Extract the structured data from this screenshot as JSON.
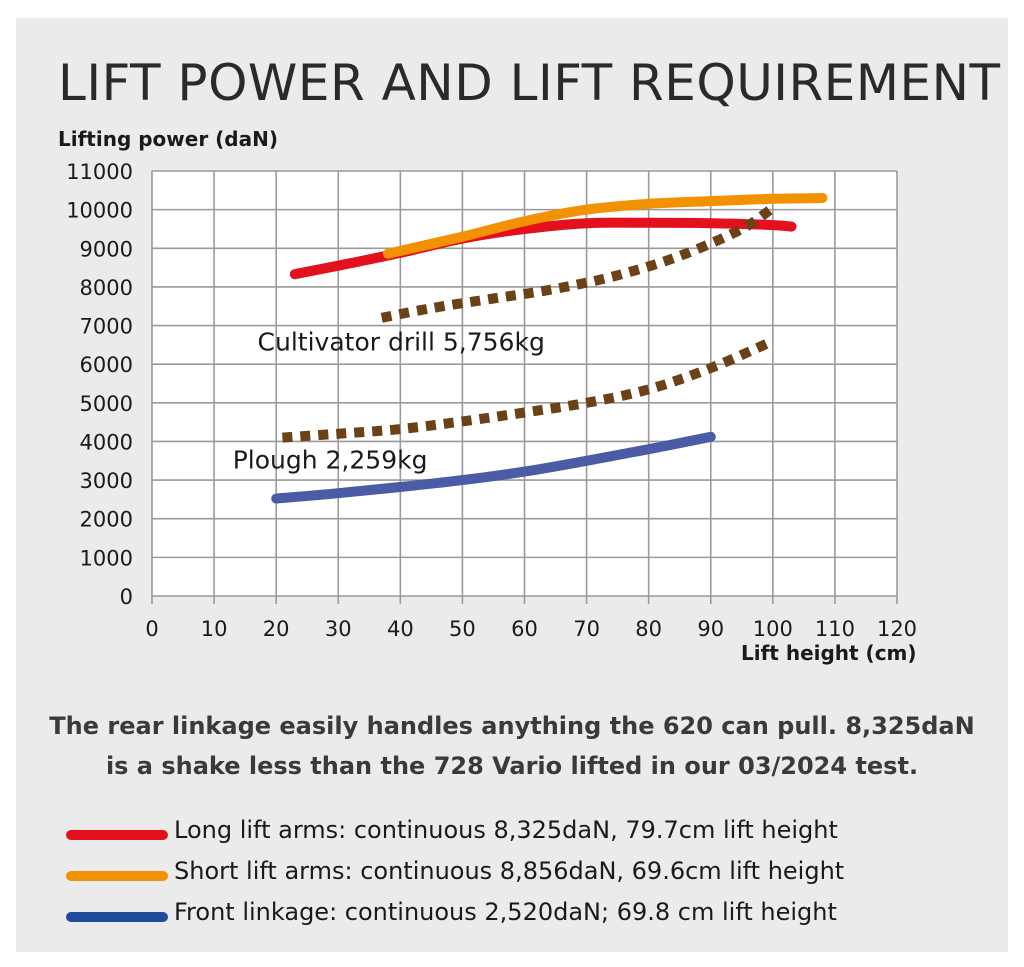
{
  "chart_data": {
    "type": "line",
    "title": "LIFT POWER AND LIFT REQUIREMENT",
    "ylabel": "Lifting power (daN)",
    "xlabel": "Lift height (cm)",
    "xlim": [
      0,
      120
    ],
    "ylim": [
      0,
      11000
    ],
    "x_ticks": [
      0,
      10,
      20,
      30,
      40,
      50,
      60,
      70,
      80,
      90,
      100,
      110,
      120
    ],
    "y_ticks": [
      0,
      1000,
      2000,
      3000,
      4000,
      5000,
      6000,
      7000,
      8000,
      9000,
      10000,
      11000
    ],
    "x_tick_labels": [
      "0",
      "10",
      "20",
      "30",
      "40",
      "50",
      "60",
      "70",
      "80",
      "90",
      "100",
      "110",
      "120"
    ],
    "y_tick_labels": [
      "0",
      "1000",
      "2000",
      "3000",
      "4000",
      "5000",
      "6000",
      "7000",
      "8000",
      "9000",
      "10000",
      "11000"
    ],
    "grid": true,
    "series": [
      {
        "color": "#e3101e",
        "style": "solid",
        "x": [
          23,
          30,
          40,
          50,
          60,
          70,
          80,
          90,
          100,
          103
        ],
        "y": [
          8330,
          8550,
          8880,
          9250,
          9500,
          9650,
          9660,
          9650,
          9600,
          9560
        ]
      },
      {
        "color": "#f39200",
        "style": "solid",
        "x": [
          38,
          50,
          60,
          70,
          80,
          90,
          100,
          108
        ],
        "y": [
          8860,
          9300,
          9700,
          10000,
          10150,
          10220,
          10280,
          10300
        ]
      },
      {
        "color": "#6b4217",
        "style": "dotted",
        "x": [
          37,
          45,
          55,
          65,
          75,
          85,
          95,
          100
        ],
        "y": [
          7200,
          7450,
          7700,
          7950,
          8300,
          8800,
          9500,
          10050
        ]
      },
      {
        "color": "#6b4217",
        "style": "dotted",
        "x": [
          21,
          30,
          40,
          50,
          60,
          70,
          80,
          90,
          100
        ],
        "y": [
          4100,
          4200,
          4320,
          4520,
          4750,
          5000,
          5350,
          5900,
          6600
        ]
      },
      {
        "color": "#4b5ba6",
        "style": "solid",
        "x": [
          20,
          30,
          40,
          50,
          60,
          70,
          80,
          90
        ],
        "y": [
          2520,
          2660,
          2820,
          3000,
          3220,
          3500,
          3800,
          4120
        ]
      }
    ],
    "annotations": [
      {
        "text": "Cultivator drill 5,756kg",
        "x": 17,
        "y": 6350
      },
      {
        "text": "Plough 2,259kg",
        "x": 13,
        "y": 3300
      }
    ]
  },
  "caption": "The rear linkage easily handles anything the 620 can pull. 8,325daN is a shake less than the 728 Vario lifted in our 03/2024 test.",
  "legend": [
    {
      "label": "Long lift arms: continuous 8,325daN, 79.7cm lift height",
      "color": "#e3101e"
    },
    {
      "label": "Short lift arms: continuous 8,856daN, 69.6cm lift height",
      "color": "#f39200"
    },
    {
      "label": "Front linkage: continuous 2,520daN; 69.8 cm lift height",
      "color": "#1e4b9c"
    }
  ]
}
